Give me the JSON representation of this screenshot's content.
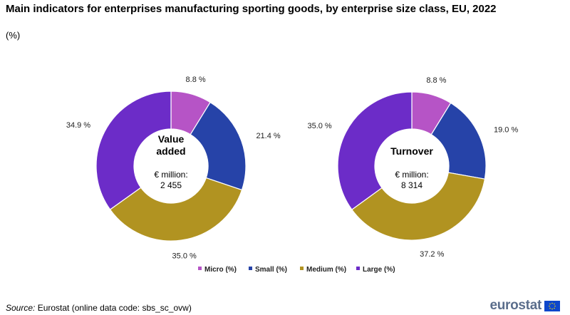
{
  "title": "Main indicators for enterprises manufacturing sporting goods, by enterprise size class, EU, 2022",
  "subtitle": "(%)",
  "source_label": "Source:",
  "source_text": "Eurostat (online data code: sbs_sc_ovw)",
  "logo_text": "eurostat",
  "colors": {
    "micro": "#b654c6",
    "small": "#2643a8",
    "medium": "#b19321",
    "large": "#6c2cc8"
  },
  "chart_data": [
    {
      "type": "pie",
      "style": "donut",
      "title": "Value added",
      "title_lines": [
        "Value",
        "added"
      ],
      "total_label": "€ million:",
      "total_value": "2 455",
      "categories": [
        "Micro (%)",
        "Small (%)",
        "Medium (%)",
        "Large (%)"
      ],
      "values": [
        8.8,
        21.4,
        35.0,
        34.9
      ],
      "value_labels": [
        "8.8 %",
        "21.4 %",
        "35.0 %",
        "34.9 %"
      ]
    },
    {
      "type": "pie",
      "style": "donut",
      "title": "Turnover",
      "title_lines": [
        "Turnover"
      ],
      "total_label": "€ million:",
      "total_value": "8 314",
      "categories": [
        "Micro (%)",
        "Small (%)",
        "Medium (%)",
        "Large (%)"
      ],
      "values": [
        8.8,
        19.0,
        37.2,
        35.0
      ],
      "value_labels": [
        "8.8 %",
        "19.0 %",
        "37.2 %",
        "35.0 %"
      ]
    }
  ],
  "legend": [
    {
      "label": "Micro (%)",
      "color": "#b654c6"
    },
    {
      "label": "Small (%)",
      "color": "#2643a8"
    },
    {
      "label": "Medium (%)",
      "color": "#b19321"
    },
    {
      "label": "Large (%)",
      "color": "#6c2cc8"
    }
  ]
}
